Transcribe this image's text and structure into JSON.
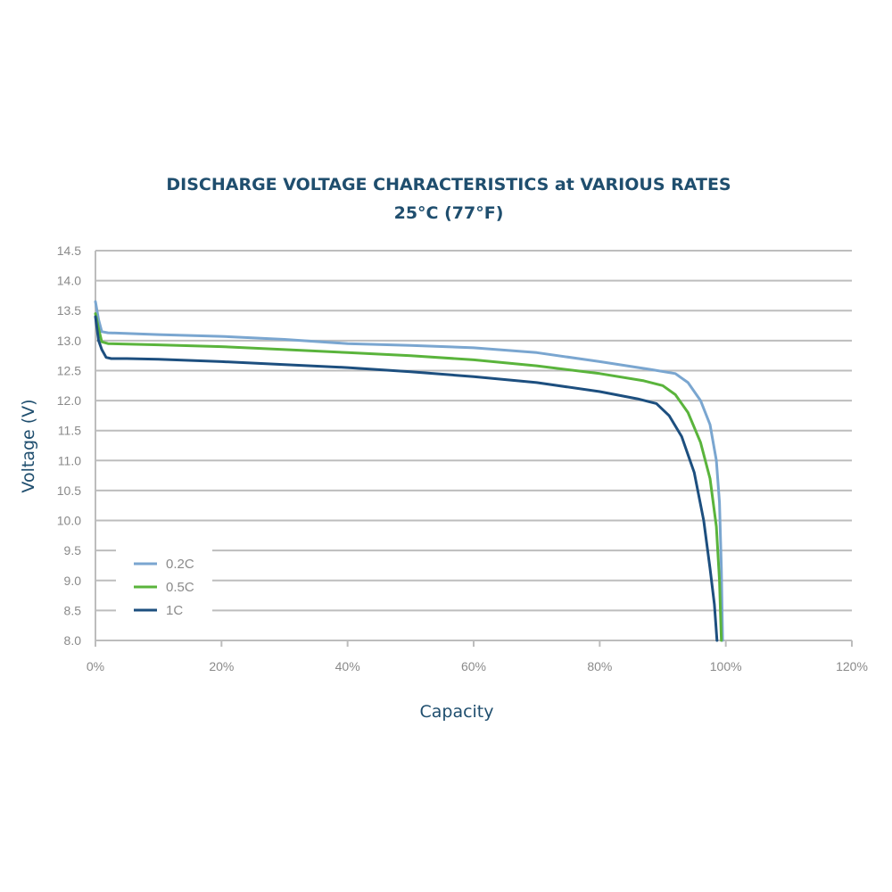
{
  "chart_data": {
    "type": "line",
    "title": "DISCHARGE VOLTAGE CHARACTERISTICS at VARIOUS RATES",
    "subtitle": "25°C (77°F)",
    "xlabel": "Capacity",
    "ylabel": "Voltage (V)",
    "xlim": [
      0,
      120
    ],
    "ylim": [
      8.0,
      14.5
    ],
    "x_ticks": [
      "0%",
      "20%",
      "40%",
      "60%",
      "80%",
      "100%",
      "120%"
    ],
    "y_ticks": [
      "8.0",
      "8.5",
      "9.0",
      "9.5",
      "10.0",
      "10.5",
      "11.0",
      "11.5",
      "12.0",
      "12.5",
      "13.0",
      "13.5",
      "14.0",
      "14.5"
    ],
    "grid": "horizontal",
    "legend_position": "bottom-left",
    "series": [
      {
        "name": "0.2C",
        "color": "#7aa6d0",
        "points": [
          [
            0,
            13.65
          ],
          [
            0.5,
            13.35
          ],
          [
            1,
            13.15
          ],
          [
            2,
            13.13
          ],
          [
            10,
            13.1
          ],
          [
            20,
            13.07
          ],
          [
            30,
            13.02
          ],
          [
            40,
            12.95
          ],
          [
            50,
            12.92
          ],
          [
            60,
            12.88
          ],
          [
            70,
            12.8
          ],
          [
            80,
            12.65
          ],
          [
            88,
            12.52
          ],
          [
            92,
            12.45
          ],
          [
            94,
            12.3
          ],
          [
            96,
            12.0
          ],
          [
            97.5,
            11.6
          ],
          [
            98.5,
            11.0
          ],
          [
            99,
            10.3
          ],
          [
            99.3,
            9.2
          ],
          [
            99.5,
            8.0
          ]
        ]
      },
      {
        "name": "0.5C",
        "color": "#5ab43c",
        "points": [
          [
            0,
            13.45
          ],
          [
            0.5,
            13.2
          ],
          [
            1,
            12.98
          ],
          [
            2,
            12.95
          ],
          [
            10,
            12.93
          ],
          [
            20,
            12.9
          ],
          [
            30,
            12.85
          ],
          [
            40,
            12.8
          ],
          [
            50,
            12.75
          ],
          [
            60,
            12.68
          ],
          [
            70,
            12.58
          ],
          [
            80,
            12.45
          ],
          [
            87,
            12.33
          ],
          [
            90,
            12.25
          ],
          [
            92,
            12.1
          ],
          [
            94,
            11.8
          ],
          [
            96,
            11.3
          ],
          [
            97.5,
            10.7
          ],
          [
            98.5,
            9.9
          ],
          [
            99,
            9.0
          ],
          [
            99.3,
            8.0
          ]
        ]
      },
      {
        "name": "1C",
        "color": "#1d4f7f",
        "points": [
          [
            0,
            13.4
          ],
          [
            0.5,
            13.0
          ],
          [
            1,
            12.85
          ],
          [
            1.7,
            12.72
          ],
          [
            2.5,
            12.7
          ],
          [
            5,
            12.7
          ],
          [
            10,
            12.69
          ],
          [
            20,
            12.65
          ],
          [
            30,
            12.6
          ],
          [
            40,
            12.55
          ],
          [
            50,
            12.48
          ],
          [
            60,
            12.4
          ],
          [
            70,
            12.3
          ],
          [
            80,
            12.15
          ],
          [
            86,
            12.03
          ],
          [
            89,
            11.95
          ],
          [
            91,
            11.75
          ],
          [
            93,
            11.4
          ],
          [
            95,
            10.8
          ],
          [
            96.5,
            10.0
          ],
          [
            97.5,
            9.2
          ],
          [
            98.2,
            8.6
          ],
          [
            98.6,
            8.0
          ]
        ]
      }
    ]
  }
}
